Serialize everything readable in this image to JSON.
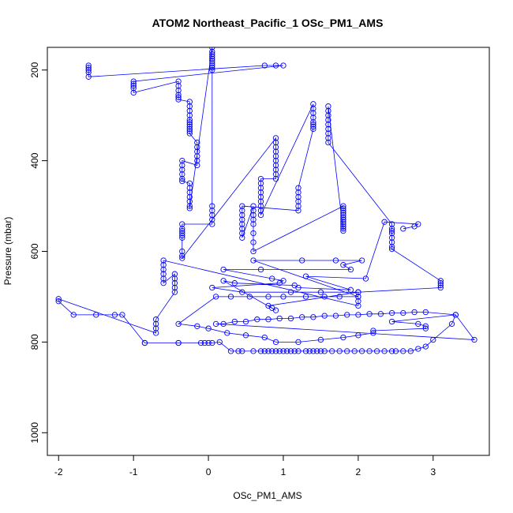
{
  "chart_data": {
    "type": "scatter",
    "title": "ATOM2 Northeast_Pacific_1 OSc_PM1_AMS",
    "xlabel": "OSc_PM1_AMS",
    "ylabel": "Pressure (mbar)",
    "xlim": [
      -2.15,
      3.75
    ],
    "ylim": [
      1050,
      150
    ],
    "y_reversed": true,
    "x_ticks": [
      -2,
      -1,
      0,
      1,
      2,
      3
    ],
    "x_tick_labels": [
      "-2",
      "-1",
      "0",
      "1",
      "2",
      "3"
    ],
    "y_ticks": [
      200,
      400,
      600,
      800,
      1000
    ],
    "y_tick_labels": [
      "200",
      "400",
      "600",
      "800",
      "1000"
    ],
    "grid": false,
    "legend": "none",
    "marker": "open-circle",
    "connect_points": true,
    "color": "#0000ff",
    "series": [
      {
        "x": [
          -1.6,
          -1.6,
          -1.6,
          -1.6,
          -1.6,
          0.75,
          0.9,
          1.0,
          -1.0,
          -1.0,
          -1.0,
          -1.0,
          -1.0,
          -0.4,
          -0.4,
          -0.4,
          -0.4,
          -0.4,
          -0.4,
          -0.25,
          -0.25,
          -0.25,
          -0.25,
          -0.25,
          -0.25,
          -0.25,
          -0.25,
          -0.25,
          -0.25,
          -0.25,
          -0.15,
          -0.15,
          -0.15,
          -0.15,
          -0.15,
          -0.15,
          -0.35,
          -0.35,
          -0.35,
          -0.35,
          -0.35,
          -0.35,
          -0.25,
          -0.25,
          -0.25,
          -0.25,
          -0.25,
          -0.25,
          -0.25,
          0.05,
          0.05,
          0.05,
          0.05,
          0.05,
          0.05,
          0.05,
          0.05,
          0.05,
          0.05,
          0.05,
          0.05,
          0.05,
          0.05,
          0.05,
          -0.35,
          -0.35,
          -0.35,
          -0.35,
          -0.35,
          -0.35,
          -0.35,
          -0.35,
          -0.35,
          0.9,
          0.9,
          0.9,
          0.9,
          0.9,
          0.9,
          0.9,
          0.9,
          0.9,
          0.9,
          0.7,
          0.7,
          0.7,
          0.7,
          0.7,
          0.7,
          0.7,
          0.7,
          0.7,
          1.4,
          1.4,
          1.4,
          1.4,
          1.4,
          1.4,
          1.4,
          1.4,
          1.2,
          1.2,
          1.2,
          1.2,
          1.2,
          1.2,
          0.45,
          0.45,
          0.45,
          0.45,
          0.45,
          0.45,
          0.45,
          0.45,
          0.6,
          0.6,
          0.6,
          0.6,
          0.6,
          0.6,
          0.6,
          0.6,
          1.8,
          1.8,
          1.8,
          1.8,
          1.8,
          1.8,
          1.8,
          1.8,
          1.8,
          1.8,
          1.8,
          1.8,
          1.6,
          1.6,
          1.6,
          1.6,
          1.6,
          1.6,
          1.6,
          1.6,
          1.6,
          2.45,
          2.45,
          2.45,
          2.45,
          2.45,
          2.45,
          2.45,
          2.45,
          3.1,
          3.1,
          3.1,
          3.1,
          2.0,
          2.0,
          2.0,
          2.0,
          -0.6,
          -0.6,
          -0.6,
          -0.6,
          -0.6,
          -0.6,
          -0.45,
          -0.45,
          -0.45,
          -0.45,
          -0.45,
          -0.7,
          -0.7,
          -0.7,
          -0.7,
          -2.0,
          -2.0,
          -1.8,
          -1.5,
          -1.25,
          -1.15,
          -0.85,
          -0.85,
          -0.4,
          -0.4,
          -0.1,
          -0.05,
          0.0,
          0.05,
          0.15,
          0.3,
          0.4,
          0.45,
          0.6,
          0.7,
          0.75,
          0.8,
          0.85,
          0.9,
          0.95,
          1.0,
          1.05,
          1.1,
          1.15,
          1.2,
          1.3,
          1.35,
          1.4,
          1.45,
          1.5,
          1.55,
          1.65,
          1.75,
          1.85,
          1.95,
          2.05,
          2.15,
          2.25,
          2.35,
          2.45,
          2.5,
          2.6,
          2.7,
          2.8,
          2.9,
          3.0,
          3.25,
          3.3,
          3.55,
          0.1,
          0.2,
          0.35,
          0.5,
          0.65,
          0.8,
          0.95,
          1.1,
          1.25,
          1.4,
          1.55,
          1.7,
          1.85,
          2.0,
          2.15,
          2.3,
          2.45,
          2.6,
          2.75,
          2.9,
          3.3,
          2.45,
          2.8,
          2.9,
          2.9,
          2.2,
          2.2,
          2.0,
          1.8,
          1.5,
          1.2,
          0.9,
          0.75,
          0.5,
          0.25,
          0.0,
          -0.15,
          -0.4,
          0.1,
          0.3,
          0.55,
          0.8,
          1.0,
          1.3,
          1.55,
          1.75,
          2.0,
          0.6,
          1.25,
          1.7,
          2.05,
          1.8,
          1.9,
          0.7,
          0.2,
          0.85,
          1.0,
          0.95,
          0.05,
          0.45,
          1.1,
          1.5,
          2.0,
          0.8,
          0.85,
          0.9,
          0.2,
          0.35,
          1.15,
          1.2,
          1.9,
          1.3,
          2.1,
          2.35,
          2.8,
          2.75,
          2.6
        ],
        "y": [
          190,
          195,
          200,
          205,
          215,
          190,
          190,
          190,
          225,
          230,
          235,
          240,
          250,
          225,
          235,
          245,
          255,
          260,
          265,
          270,
          280,
          290,
          300,
          310,
          315,
          320,
          325,
          330,
          335,
          340,
          360,
          370,
          380,
          390,
          400,
          410,
          400,
          410,
          420,
          430,
          440,
          445,
          450,
          460,
          470,
          480,
          490,
          500,
          505,
          150,
          160,
          165,
          170,
          175,
          180,
          185,
          190,
          195,
          200,
          500,
          510,
          520,
          530,
          540,
          540,
          550,
          555,
          560,
          565,
          570,
          600,
          610,
          615,
          350,
          360,
          370,
          380,
          390,
          400,
          410,
          420,
          430,
          440,
          440,
          450,
          460,
          470,
          480,
          490,
          500,
          510,
          520,
          275,
          285,
          295,
          305,
          315,
          320,
          325,
          330,
          460,
          470,
          480,
          490,
          500,
          510,
          500,
          510,
          520,
          530,
          540,
          550,
          560,
          570,
          500,
          510,
          520,
          530,
          540,
          560,
          580,
          600,
          500,
          505,
          510,
          515,
          520,
          525,
          530,
          535,
          540,
          545,
          550,
          555,
          280,
          290,
          300,
          310,
          320,
          330,
          340,
          350,
          360,
          540,
          550,
          555,
          560,
          570,
          580,
          590,
          595,
          665,
          670,
          675,
          680,
          690,
          700,
          710,
          720,
          620,
          630,
          640,
          650,
          660,
          670,
          650,
          660,
          670,
          680,
          690,
          750,
          760,
          770,
          780,
          705,
          710,
          740,
          740,
          740,
          740,
          802,
          802,
          802,
          802,
          802,
          802,
          802,
          802,
          800,
          820,
          820,
          820,
          820,
          820,
          820,
          820,
          820,
          820,
          820,
          820,
          820,
          820,
          820,
          820,
          820,
          820,
          820,
          820,
          820,
          820,
          820,
          820,
          820,
          820,
          820,
          820,
          820,
          820,
          820,
          820,
          820,
          820,
          815,
          810,
          795,
          760,
          740,
          795,
          760,
          760,
          755,
          755,
          750,
          750,
          748,
          748,
          745,
          745,
          742,
          742,
          740,
          740,
          738,
          738,
          736,
          736,
          734,
          734,
          740,
          755,
          760,
          765,
          770,
          775,
          780,
          785,
          790,
          795,
          800,
          800,
          790,
          785,
          780,
          770,
          765,
          760,
          700,
          700,
          700,
          700,
          700,
          700,
          700,
          700,
          700,
          620,
          620,
          620,
          620,
          630,
          640,
          640,
          640,
          660,
          665,
          670,
          680,
          690,
          690,
          690,
          690,
          720,
          725,
          730,
          665,
          670,
          675,
          680,
          685,
          655,
          660,
          535,
          540,
          545,
          550
        ]
      }
    ]
  }
}
